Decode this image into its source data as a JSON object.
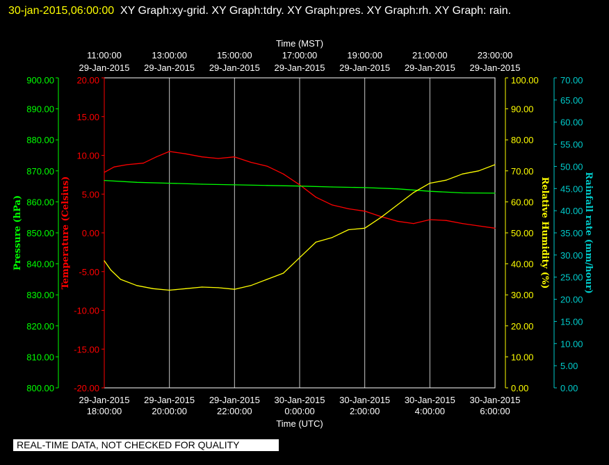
{
  "header": {
    "stamp": "30-jan-2015,06:00:00",
    "rest": "XY Graph:xy-grid.  XY Graph:tdry.  XY Graph:pres.  XY Graph:rh.  XY Graph: rain."
  },
  "footer": {
    "note": "REAL-TIME DATA, NOT CHECKED FOR QUALITY"
  },
  "chart_data": {
    "type": "line",
    "x_top": {
      "title": "Time (MST)",
      "ticks": [
        {
          "time": "11:00:00",
          "date": "29-Jan-2015"
        },
        {
          "time": "13:00:00",
          "date": "29-Jan-2015"
        },
        {
          "time": "15:00:00",
          "date": "29-Jan-2015"
        },
        {
          "time": "17:00:00",
          "date": "29-Jan-2015"
        },
        {
          "time": "19:00:00",
          "date": "29-Jan-2015"
        },
        {
          "time": "21:00:00",
          "date": "29-Jan-2015"
        },
        {
          "time": "23:00:00",
          "date": "29-Jan-2015"
        }
      ]
    },
    "x_bottom": {
      "title": "Time (UTC)",
      "ticks": [
        {
          "date": "29-Jan-2015",
          "time": "18:00:00"
        },
        {
          "date": "29-Jan-2015",
          "time": "20:00:00"
        },
        {
          "date": "29-Jan-2015",
          "time": "22:00:00"
        },
        {
          "date": "30-Jan-2015",
          "time": "0:00:00"
        },
        {
          "date": "30-Jan-2015",
          "time": "2:00:00"
        },
        {
          "date": "30-Jan-2015",
          "time": "4:00:00"
        },
        {
          "date": "30-Jan-2015",
          "time": "6:00:00"
        }
      ]
    },
    "xlim_hours_utc": [
      18,
      30
    ],
    "y_axes": {
      "pressure": {
        "label": "Pressure (hPa)",
        "color": "#00ff00",
        "lim": [
          800,
          900
        ],
        "ticks": [
          "800.00",
          "810.00",
          "820.00",
          "830.00",
          "840.00",
          "850.00",
          "860.00",
          "870.00",
          "880.00",
          "890.00",
          "900.00"
        ]
      },
      "temperature": {
        "label": "Temperature (Celsius)",
        "color": "#ff0000",
        "lim": [
          -20,
          20
        ],
        "ticks": [
          "-20.00",
          "-15.00",
          "-10.00",
          "-5.00",
          "0.00",
          "5.00",
          "10.00",
          "15.00",
          "20.00"
        ]
      },
      "humidity": {
        "label": "Relative Humidity (%)",
        "color": "#ffff00",
        "lim": [
          0,
          100
        ],
        "ticks": [
          "0.00",
          "10.00",
          "20.00",
          "30.00",
          "40.00",
          "50.00",
          "60.00",
          "70.00",
          "80.00",
          "90.00",
          "100.00"
        ]
      },
      "rain": {
        "label": "Rainfall rate (mm/hour)",
        "color": "#00cccc",
        "lim": [
          0,
          70
        ],
        "ticks": [
          "0.00",
          "5.00",
          "10.00",
          "15.00",
          "20.00",
          "25.00",
          "30.00",
          "35.00",
          "40.00",
          "45.00",
          "50.00",
          "55.00",
          "60.00",
          "65.00",
          "70.00"
        ]
      }
    },
    "grid": true,
    "series": [
      {
        "name": "Temperature",
        "axis": "temperature",
        "color": "#ff0000",
        "x": [
          18,
          18.3,
          18.7,
          19.2,
          19.6,
          20.0,
          20.5,
          21.0,
          21.5,
          22.0,
          22.5,
          23.0,
          23.5,
          24.0,
          24.5,
          25.0,
          25.5,
          26.0,
          26.5,
          27.0,
          27.5,
          28.0,
          28.5,
          29.0,
          29.5,
          30.0
        ],
        "y": [
          7.8,
          8.5,
          8.8,
          9.0,
          9.8,
          10.5,
          10.2,
          9.8,
          9.6,
          9.8,
          9.1,
          8.6,
          7.6,
          6.2,
          4.6,
          3.6,
          3.1,
          2.8,
          2.1,
          1.5,
          1.2,
          1.7,
          1.6,
          1.2,
          0.9,
          0.6
        ]
      },
      {
        "name": "Pressure",
        "axis": "pressure",
        "color": "#00ff00",
        "x": [
          18,
          19,
          20,
          21,
          22,
          23,
          24,
          25,
          26,
          27,
          28,
          29,
          30
        ],
        "y": [
          866.9,
          866.3,
          866.0,
          865.7,
          865.5,
          865.3,
          865.1,
          864.8,
          864.6,
          864.2,
          863.4,
          862.9,
          862.8
        ]
      },
      {
        "name": "Relative Humidity",
        "axis": "humidity",
        "color": "#ffff00",
        "x": [
          18,
          18.2,
          18.5,
          19.0,
          19.5,
          20.0,
          20.5,
          21.0,
          21.5,
          22.0,
          22.5,
          23.0,
          23.5,
          24.0,
          24.5,
          25.0,
          25.5,
          26.0,
          26.5,
          27.0,
          27.5,
          28.0,
          28.5,
          29.0,
          29.5,
          30.0
        ],
        "y": [
          41,
          38,
          35,
          33,
          32,
          31.5,
          32,
          32.5,
          32.3,
          31.8,
          33,
          35,
          37,
          42,
          47,
          48.5,
          51,
          51.5,
          55,
          59,
          63,
          66,
          67,
          69,
          70,
          72
        ]
      },
      {
        "name": "Rainfall rate",
        "axis": "rain",
        "color": "#00cccc",
        "x": [],
        "y": []
      }
    ]
  }
}
